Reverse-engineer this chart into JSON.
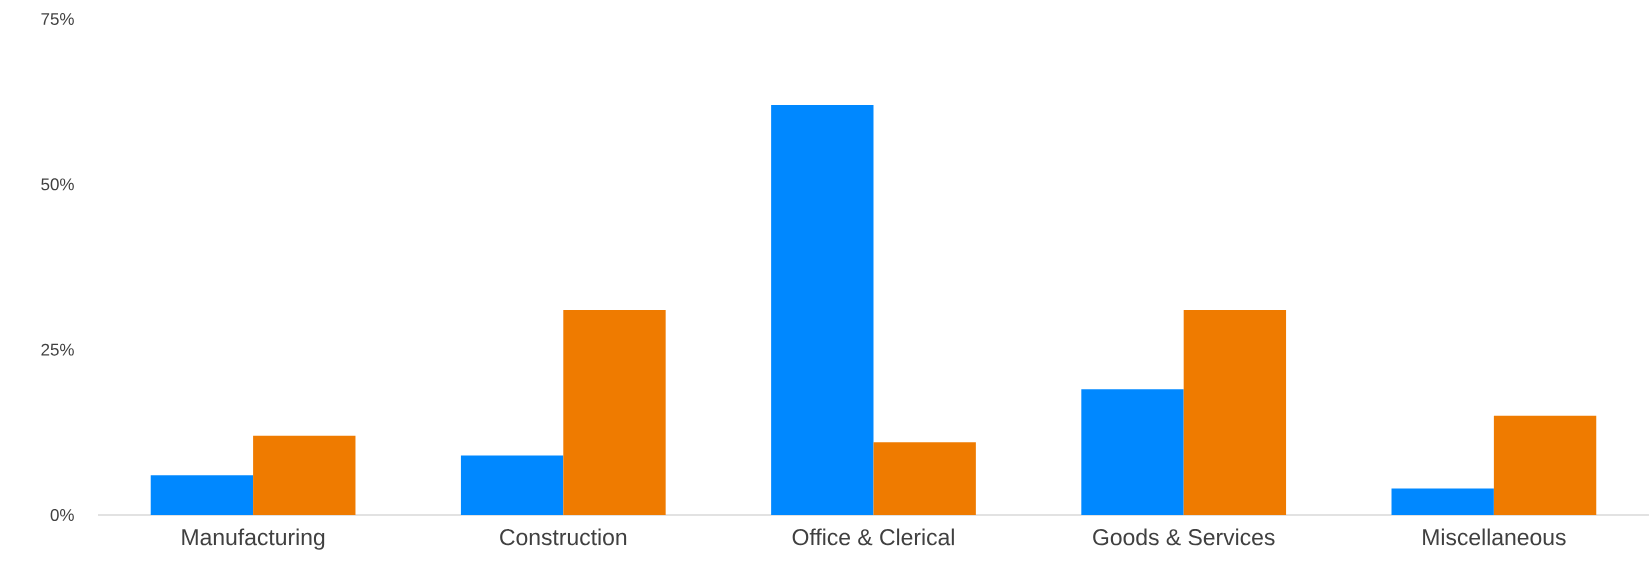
{
  "chart_data": {
    "type": "bar",
    "categories": [
      "Manufacturing",
      "Construction",
      "Office & Clerical",
      "Goods & Services",
      "Miscellaneous"
    ],
    "series": [
      {
        "color": "#0088ff",
        "values": [
          6,
          9,
          62,
          19,
          4
        ]
      },
      {
        "color": "#ef7b00",
        "values": [
          12,
          31,
          11,
          31,
          15
        ]
      }
    ],
    "ylim": [
      0,
      75
    ],
    "yticks": [
      {
        "value": 0,
        "label": "0%"
      },
      {
        "value": 25,
        "label": "25%"
      },
      {
        "value": 50,
        "label": "50%"
      },
      {
        "value": 75,
        "label": "75%"
      }
    ]
  }
}
